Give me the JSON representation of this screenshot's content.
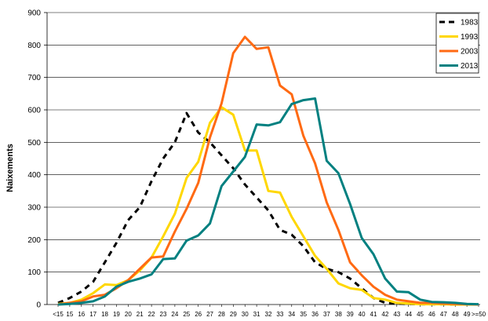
{
  "chart_data": {
    "type": "line",
    "ylabel": "Naixements",
    "ylim": [
      0,
      900
    ],
    "yticks": [
      0,
      100,
      200,
      300,
      400,
      500,
      600,
      700,
      800,
      900
    ],
    "categories": [
      "<15",
      "15",
      "16",
      "17",
      "18",
      "19",
      "20",
      "21",
      "22",
      "23",
      "24",
      "25",
      "26",
      "27",
      "28",
      "29",
      "30",
      "31",
      "32",
      "33",
      "34",
      "35",
      "36",
      "37",
      "38",
      "39",
      "40",
      "41",
      "42",
      "43",
      "44",
      "45",
      "46",
      "47",
      "48",
      "49",
      ">=50"
    ],
    "grid": "horizontal",
    "legend_position": "top-right",
    "series": [
      {
        "name": "1983",
        "color": "#000000",
        "dash": true,
        "values": [
          5,
          20,
          40,
          70,
          130,
          190,
          260,
          300,
          380,
          450,
          500,
          590,
          530,
          500,
          460,
          420,
          370,
          330,
          290,
          230,
          215,
          180,
          130,
          110,
          100,
          80,
          50,
          20,
          5,
          3,
          2,
          1,
          1,
          1,
          0,
          0,
          0
        ]
      },
      {
        "name": "1993",
        "color": "#FFD700",
        "dash": false,
        "values": [
          2,
          5,
          15,
          35,
          62,
          60,
          75,
          105,
          145,
          210,
          280,
          390,
          440,
          560,
          608,
          585,
          475,
          475,
          350,
          345,
          270,
          210,
          150,
          110,
          65,
          50,
          45,
          20,
          15,
          5,
          3,
          1,
          1,
          1,
          0,
          0,
          0
        ]
      },
      {
        "name": "2003",
        "color": "#FF6A13",
        "dash": false,
        "values": [
          0,
          5,
          10,
          25,
          30,
          50,
          75,
          110,
          145,
          148,
          225,
          295,
          375,
          515,
          620,
          775,
          825,
          788,
          793,
          675,
          648,
          520,
          435,
          315,
          230,
          130,
          90,
          55,
          30,
          15,
          10,
          5,
          5,
          3,
          2,
          1,
          0
        ]
      },
      {
        "name": "2013",
        "color": "#008080",
        "dash": false,
        "values": [
          0,
          2,
          5,
          10,
          25,
          55,
          70,
          80,
          93,
          140,
          142,
          197,
          213,
          250,
          365,
          410,
          455,
          555,
          552,
          562,
          618,
          630,
          635,
          443,
          405,
          310,
          205,
          155,
          80,
          40,
          38,
          15,
          8,
          7,
          5,
          2,
          1
        ]
      }
    ]
  }
}
